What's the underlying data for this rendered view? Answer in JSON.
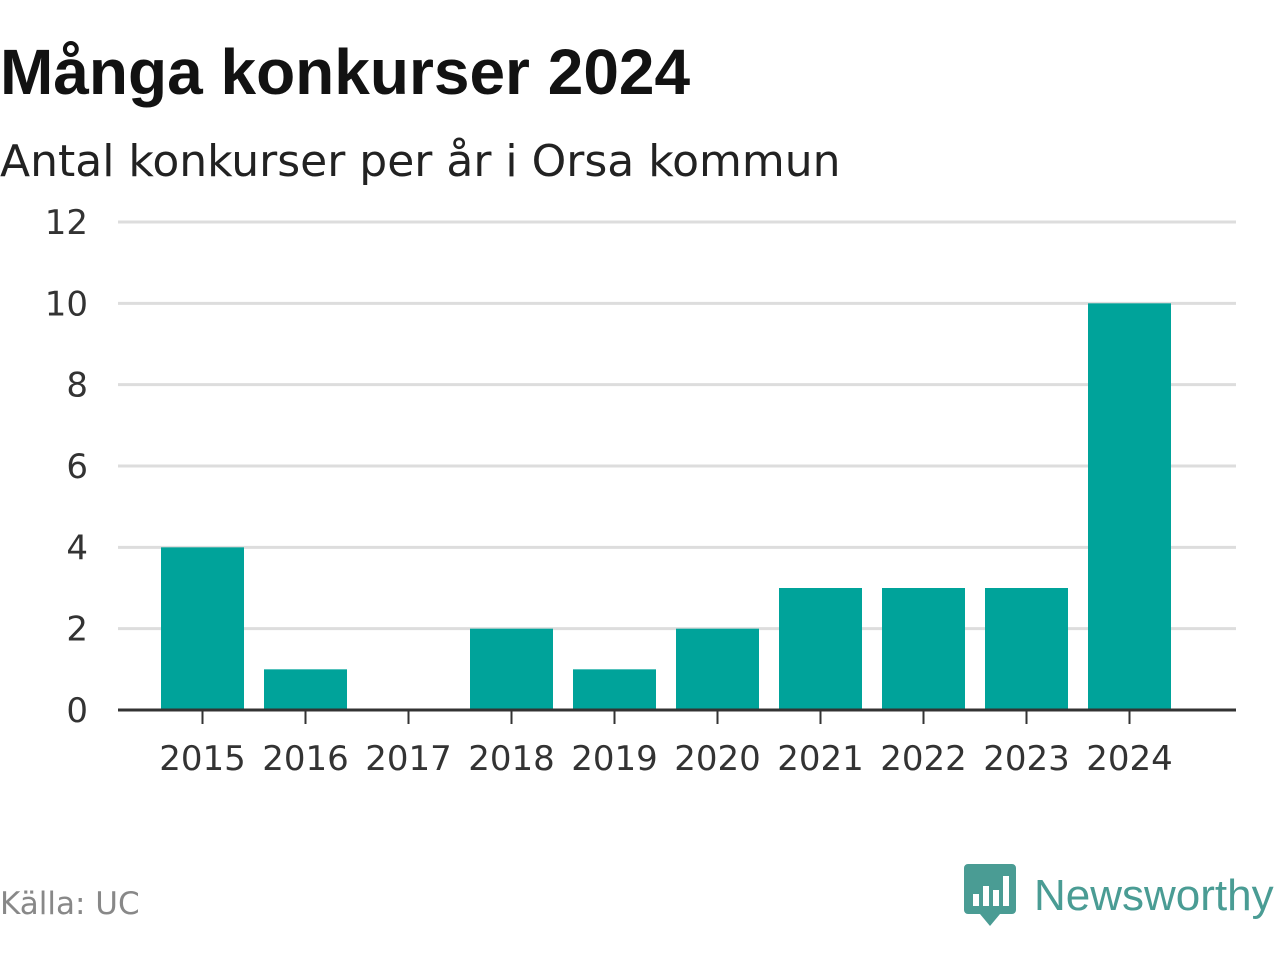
{
  "colors": {
    "bar": "#00a39a",
    "grid": "#dddddd",
    "axis": "#333333",
    "brand": "#4a9c94",
    "source": "#888888"
  },
  "footer": {
    "source": "Källa: UC",
    "brand_name": "Newsworthy",
    "brand_icon": "newsworthy-logo-icon"
  },
  "chart_data": {
    "type": "bar",
    "title": "Många konkurser 2024",
    "subtitle": "Antal konkurser per år i Orsa kommun",
    "xlabel": "",
    "ylabel": "",
    "categories": [
      "2015",
      "2016",
      "2017",
      "2018",
      "2019",
      "2020",
      "2021",
      "2022",
      "2023",
      "2024"
    ],
    "values": [
      4,
      1,
      0,
      2,
      1,
      2,
      3,
      3,
      3,
      10
    ],
    "ylim": [
      0,
      12
    ],
    "yticks": [
      "0",
      "2",
      "4",
      "6",
      "8",
      "10",
      "12"
    ],
    "grid": true,
    "legend": "none"
  }
}
